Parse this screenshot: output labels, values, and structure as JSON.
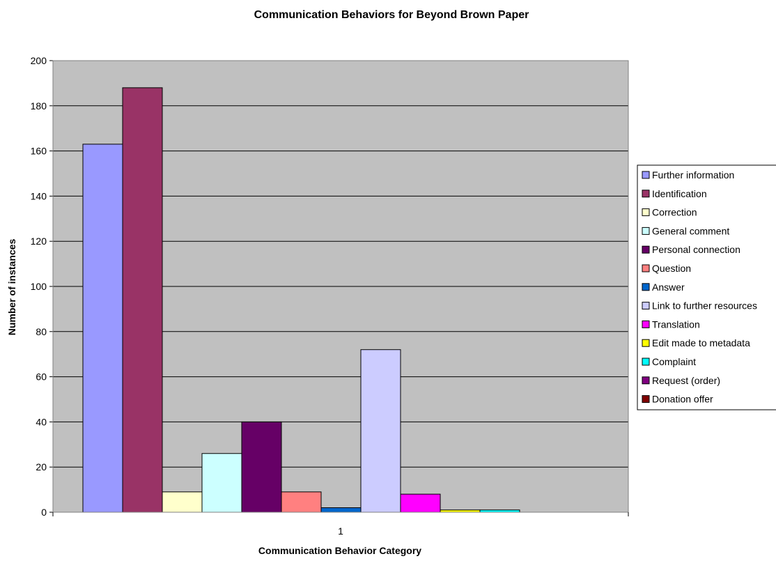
{
  "chart_data": {
    "type": "bar",
    "title": "Communication Behaviors for Beyond Brown Paper",
    "xlabel": "Communication Behavior Category",
    "ylabel": "Number of instances",
    "categories": [
      "1"
    ],
    "ylim": [
      0,
      200
    ],
    "yticks": [
      0,
      20,
      40,
      60,
      80,
      100,
      120,
      140,
      160,
      180,
      200
    ],
    "grid": true,
    "legend_position": "right",
    "plot_background": "#C0C0C0",
    "series": [
      {
        "name": "Further information",
        "values": [
          163
        ],
        "color": "#9999FF"
      },
      {
        "name": "Identification",
        "values": [
          188
        ],
        "color": "#993366"
      },
      {
        "name": "Correction",
        "values": [
          9
        ],
        "color": "#FFFFCC"
      },
      {
        "name": "General comment",
        "values": [
          26
        ],
        "color": "#CCFFFF"
      },
      {
        "name": "Personal connection",
        "values": [
          40
        ],
        "color": "#660066"
      },
      {
        "name": "Question",
        "values": [
          9
        ],
        "color": "#FF8080"
      },
      {
        "name": "Answer",
        "values": [
          2
        ],
        "color": "#0066CC"
      },
      {
        "name": "Link to further resources",
        "values": [
          72
        ],
        "color": "#CCCCFF"
      },
      {
        "name": "Translation",
        "values": [
          8
        ],
        "color": "#FF00FF"
      },
      {
        "name": "Edit made to metadata",
        "values": [
          1
        ],
        "color": "#FFFF00"
      },
      {
        "name": "Complaint",
        "values": [
          1
        ],
        "color": "#00FFFF"
      },
      {
        "name": "Request (order)",
        "values": [
          0
        ],
        "color": "#800080"
      },
      {
        "name": "Donation offer",
        "values": [
          0
        ],
        "color": "#800000"
      }
    ]
  }
}
